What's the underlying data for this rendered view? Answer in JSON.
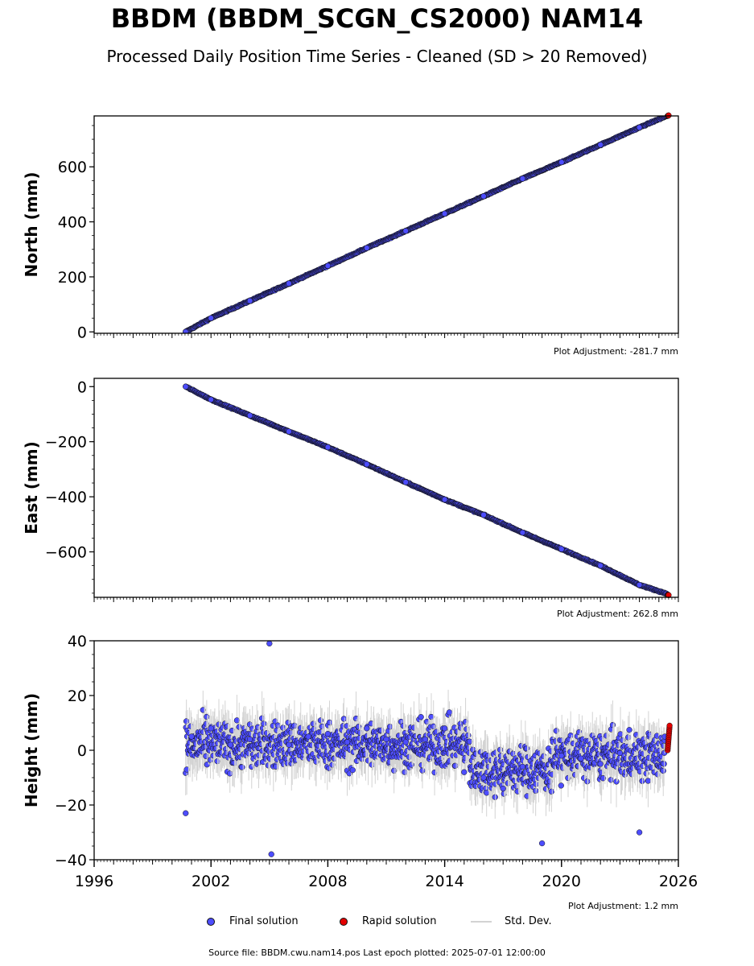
{
  "title": "BBDM (BBDM_SCGN_CS2000) NAM14",
  "subtitle": "Processed Daily Position Time Series - Cleaned (SD > 20 Removed)",
  "source_note": "Source file: BBDM.cwu.nam14.pos  Last epoch plotted: 2025-07-01 12:00:00",
  "legend": {
    "final": "Final solution",
    "rapid": "Rapid solution",
    "std": "Std. Dev."
  },
  "colors": {
    "final": "#4d4dff",
    "rapid": "#e30000",
    "std": "#d3d3d3",
    "marker_edge": "#111111"
  },
  "chart_data": [
    {
      "type": "scatter",
      "panel": "north",
      "ylabel": "North (mm)",
      "adjustment": "Plot Adjustment: -281.7 mm",
      "xlim": [
        1996,
        2026
      ],
      "ylim": [
        -5,
        785
      ],
      "yticks": [
        0,
        200,
        400,
        600
      ],
      "ytick_labels": [
        "0",
        "200",
        "400",
        "600"
      ],
      "xtick_labels_shown": false,
      "series": [
        {
          "name": "Final solution",
          "x": [
            2000.7,
            2002,
            2004,
            2006,
            2008,
            2010,
            2012,
            2014,
            2016,
            2018,
            2020,
            2022,
            2024,
            2025.4
          ],
          "y": [
            0,
            50,
            113,
            176,
            240,
            305,
            367,
            430,
            493,
            557,
            617,
            680,
            743,
            785
          ]
        },
        {
          "name": "Rapid solution",
          "x": [
            2025.45,
            2025.5
          ],
          "y": [
            785,
            787
          ]
        }
      ]
    },
    {
      "type": "scatter",
      "panel": "east",
      "ylabel": "East (mm)",
      "adjustment": "Plot Adjustment: 262.8 mm",
      "xlim": [
        1996,
        2026
      ],
      "ylim": [
        -765,
        30
      ],
      "yticks": [
        0,
        -200,
        -400,
        -600
      ],
      "ytick_labels": [
        "0",
        "−200",
        "−400",
        "−600"
      ],
      "xtick_labels_shown": false,
      "series": [
        {
          "name": "Final solution",
          "x": [
            2000.7,
            2002,
            2004,
            2006,
            2008,
            2010,
            2012,
            2014,
            2016,
            2018,
            2020,
            2022,
            2024,
            2025.4
          ],
          "y": [
            0,
            -47,
            -105,
            -163,
            -220,
            -282,
            -347,
            -410,
            -466,
            -530,
            -590,
            -650,
            -720,
            -752
          ]
        },
        {
          "name": "Rapid solution",
          "x": [
            2025.45,
            2025.5
          ],
          "y": [
            -755,
            -757
          ]
        }
      ]
    },
    {
      "type": "scatter",
      "panel": "height",
      "ylabel": "Height (mm)",
      "adjustment": "Plot Adjustment: 1.2 mm",
      "xlim": [
        1996,
        2026
      ],
      "ylim": [
        -40,
        40
      ],
      "yticks": [
        40,
        20,
        0,
        -20,
        -40
      ],
      "ytick_labels": [
        "40",
        "20",
        "0",
        "−20",
        "−40"
      ],
      "xticks": [
        1996,
        2002,
        2008,
        2014,
        2020,
        2026
      ],
      "xtick_labels": [
        "1996",
        "2002",
        "2008",
        "2014",
        "2020",
        "2026"
      ],
      "series": [
        {
          "name": "Final solution",
          "x": [
            2000.7,
            2001,
            2002,
            2003,
            2004,
            2005,
            2005.1,
            2006,
            2007,
            2008,
            2009,
            2010,
            2011,
            2012,
            2013,
            2014,
            2015,
            2016,
            2017,
            2018,
            2019,
            2020,
            2021,
            2022,
            2023,
            2024,
            2025.3
          ],
          "y": [
            -23,
            5,
            8,
            2,
            4,
            39,
            -38,
            2,
            5,
            6,
            3,
            8,
            4,
            3,
            4,
            8,
            -8,
            -10,
            -14,
            -6,
            -34,
            -2,
            -3,
            -5,
            -1,
            -30,
            5
          ]
        },
        {
          "name": "Rapid solution",
          "x": [
            2025.45,
            2025.5,
            2025.55
          ],
          "y": [
            0,
            5,
            9
          ]
        }
      ]
    }
  ]
}
